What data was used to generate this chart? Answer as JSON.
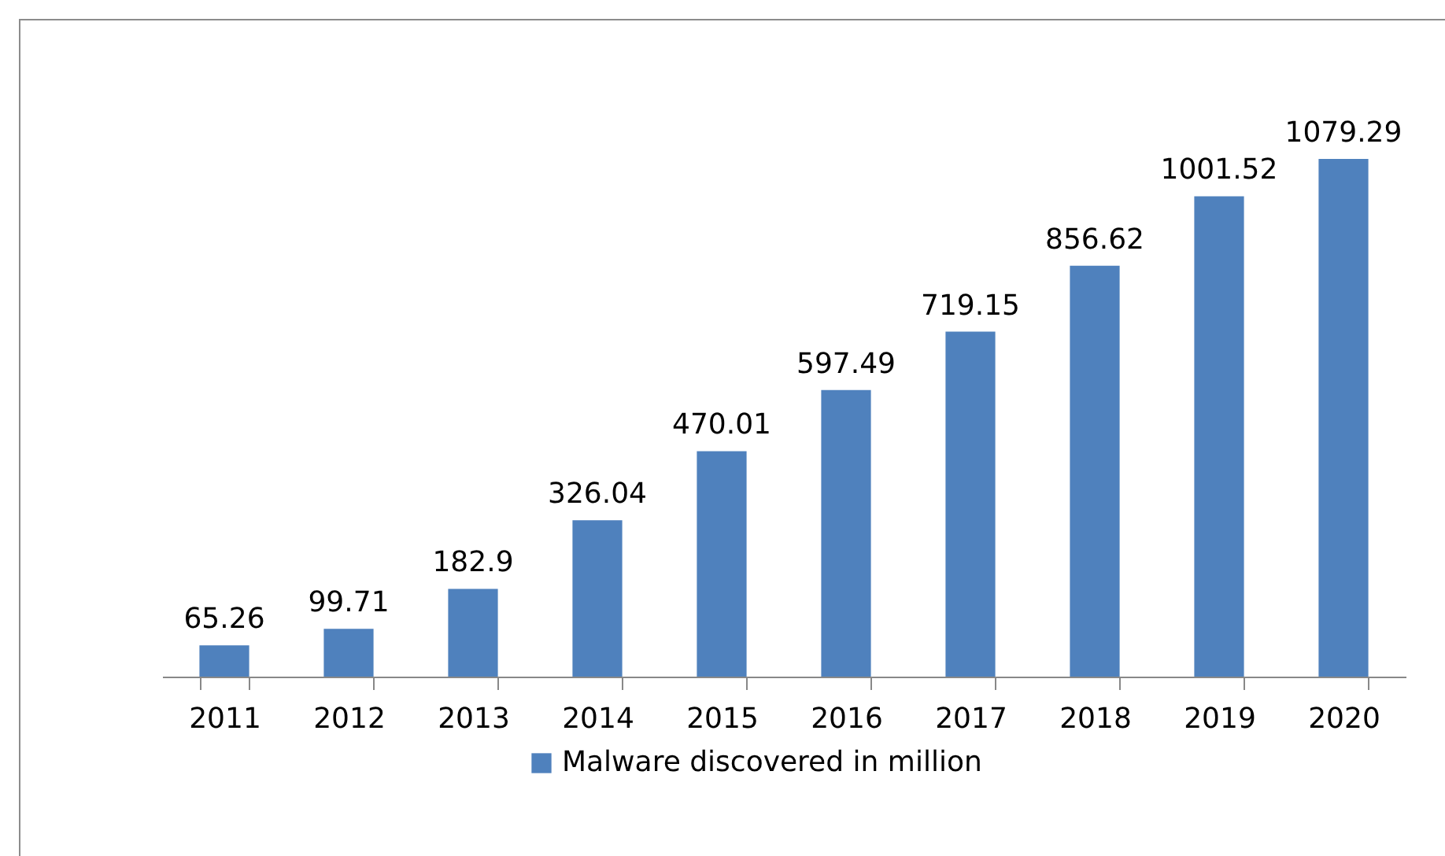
{
  "chart_data": {
    "type": "bar",
    "categories": [
      "2011",
      "2012",
      "2013",
      "2014",
      "2015",
      "2016",
      "2017",
      "2018",
      "2019",
      "2020"
    ],
    "series": [
      {
        "name": "Malware discovered in million",
        "color": "#4f81bd",
        "values": [
          65.26,
          99.71,
          182.9,
          326.04,
          470.01,
          597.49,
          719.15,
          856.62,
          1001.52,
          1079.29
        ]
      }
    ],
    "data_labels": true,
    "legend": "bottom"
  }
}
